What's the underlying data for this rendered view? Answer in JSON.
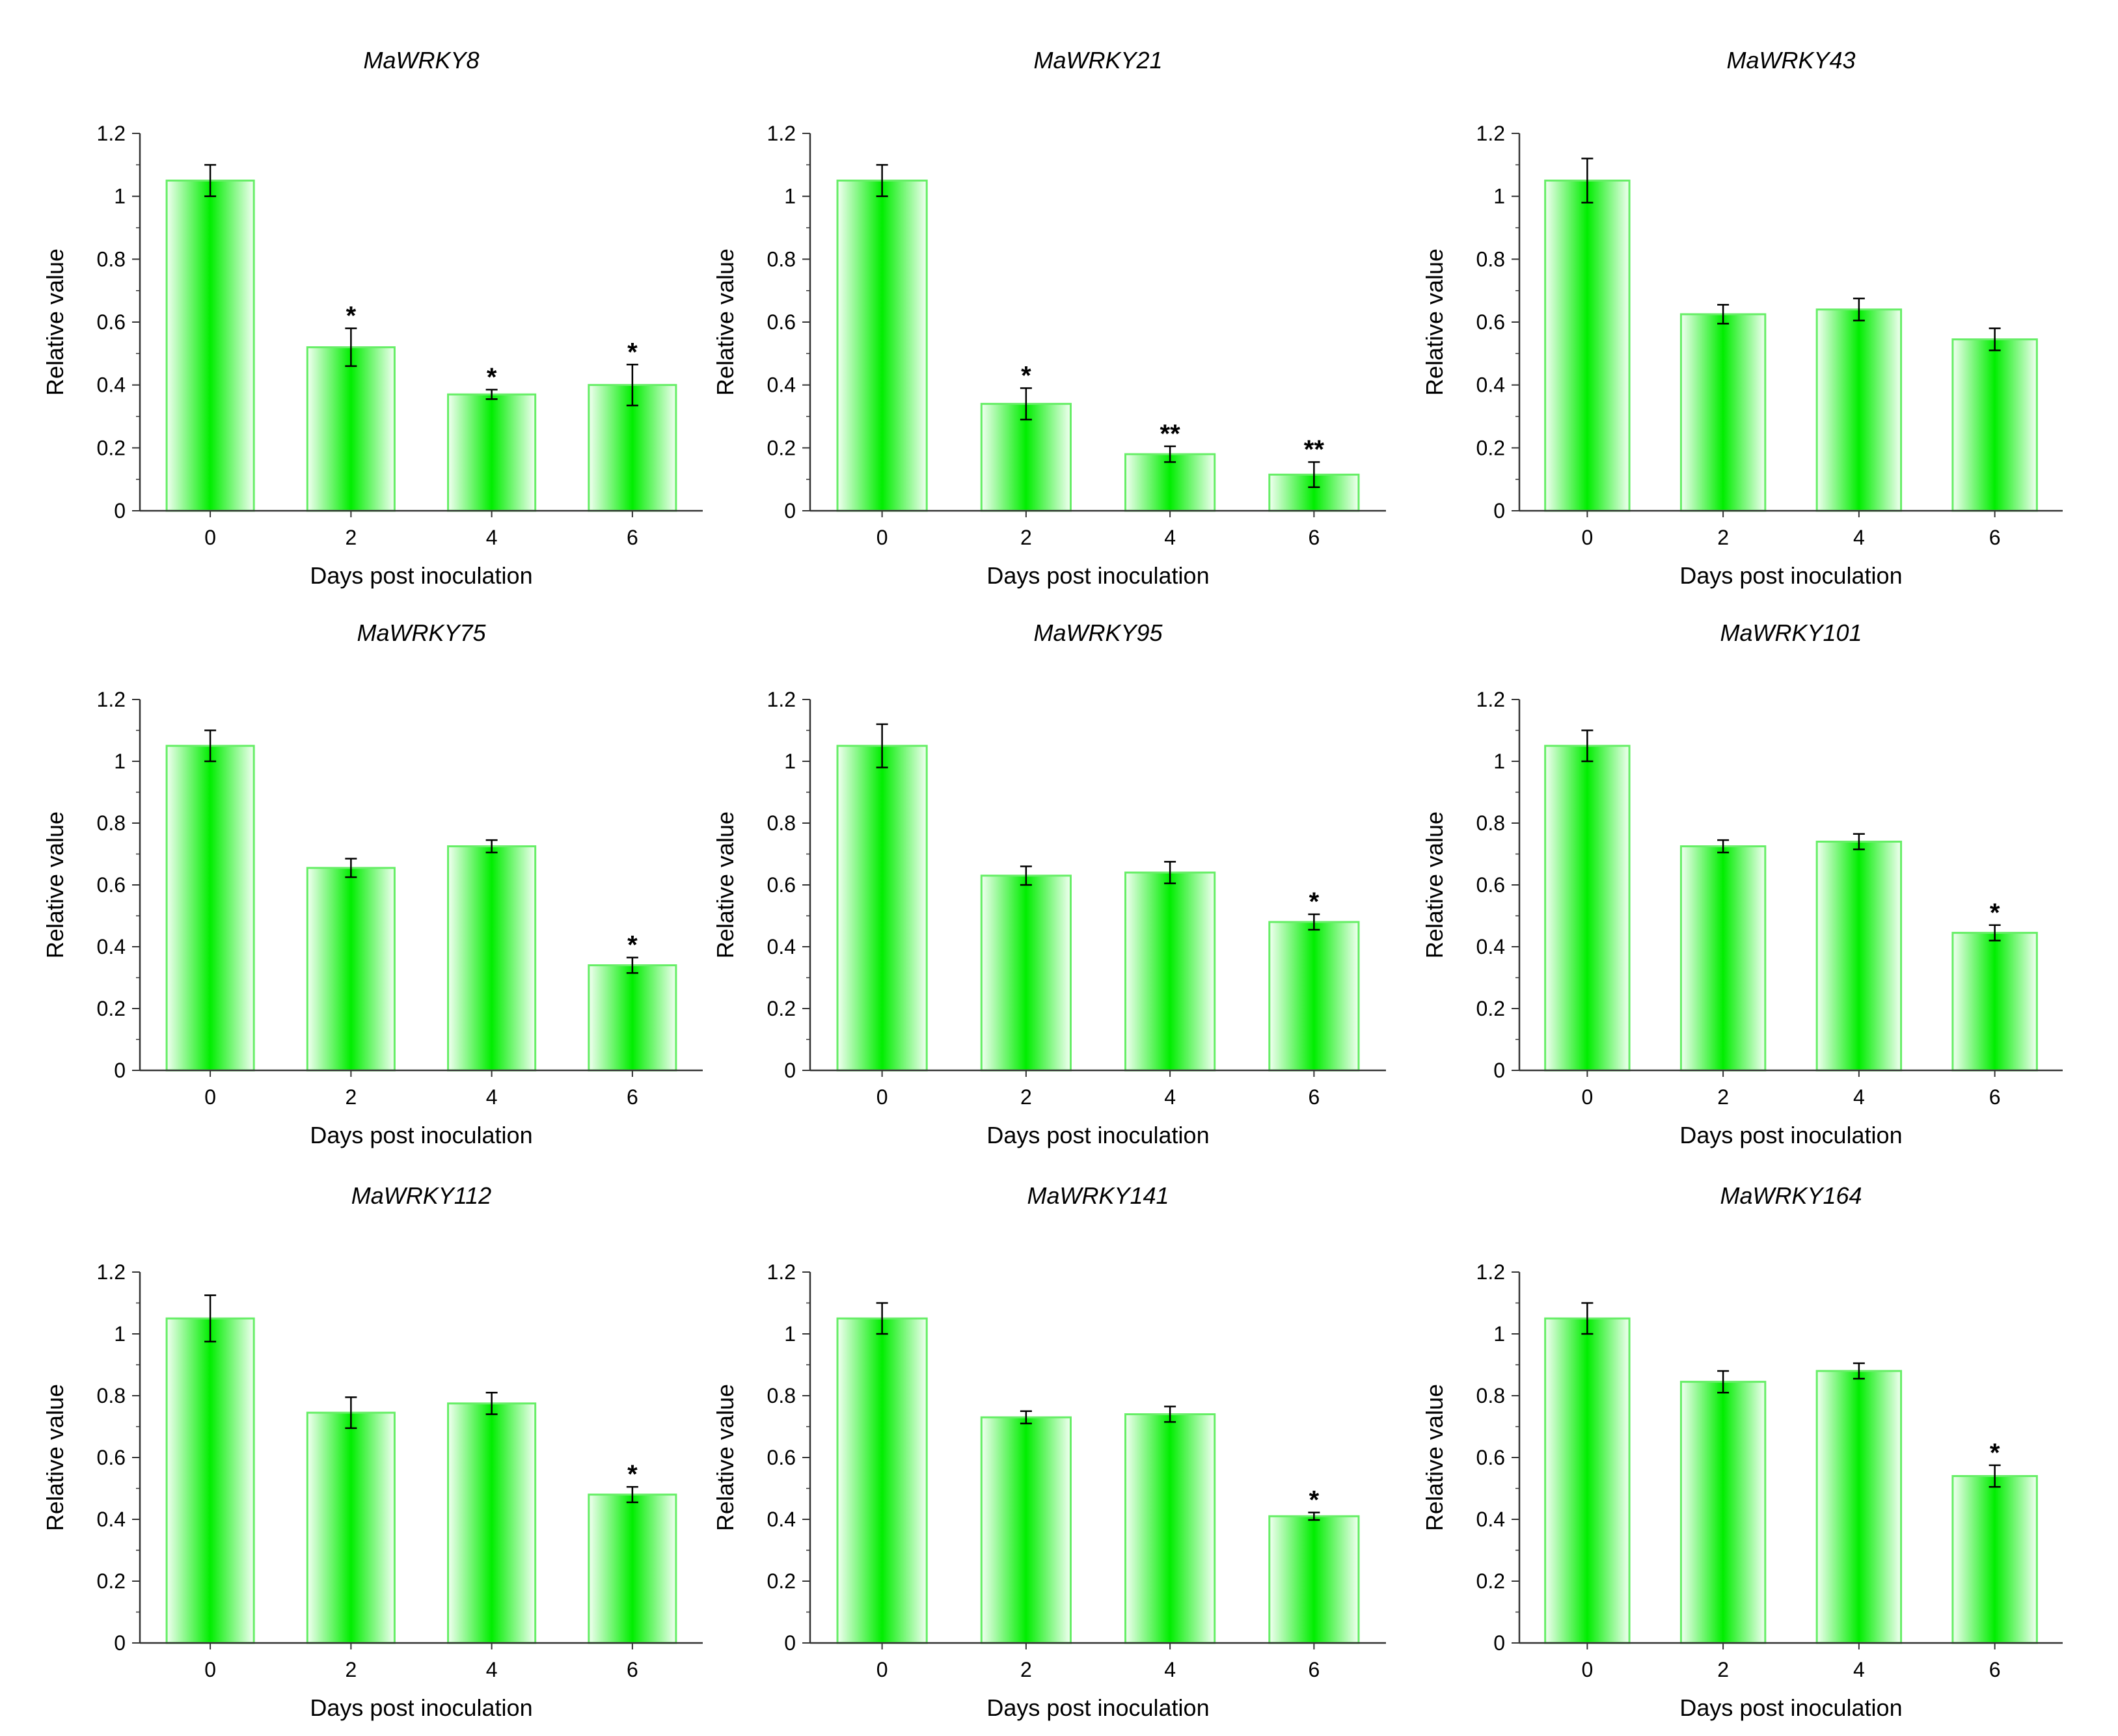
{
  "figure": {
    "background": "#ffffff",
    "bar_fill_center": "#00ee00",
    "bar_fill_edge": "#f2fff2",
    "bar_stroke": "#66ee66"
  },
  "chart_data": [
    {
      "type": "bar",
      "title": "MaWRKY8",
      "xlabel": "Days post inoculation",
      "ylabel": "Relative value",
      "categories": [
        "0",
        "2",
        "4",
        "6"
      ],
      "values": [
        1.05,
        0.52,
        0.37,
        0.4
      ],
      "errors": [
        0.05,
        0.06,
        0.015,
        0.065
      ],
      "significance": [
        "",
        "*",
        "*",
        "*"
      ],
      "ylim": [
        0,
        1.2
      ],
      "yticks": [
        "0",
        "0.2",
        "0.4",
        "0.6",
        "0.8",
        "1",
        "1.2"
      ],
      "grid": false
    },
    {
      "type": "bar",
      "title": "MaWRKY21",
      "xlabel": "Days post inoculation",
      "ylabel": "Relative value",
      "categories": [
        "0",
        "2",
        "4",
        "6"
      ],
      "values": [
        1.05,
        0.34,
        0.18,
        0.115
      ],
      "errors": [
        0.05,
        0.05,
        0.025,
        0.04
      ],
      "significance": [
        "",
        "*",
        "**",
        "**"
      ],
      "ylim": [
        0,
        1.2
      ],
      "yticks": [
        "0",
        "0.2",
        "0.4",
        "0.6",
        "0.8",
        "1",
        "1.2"
      ],
      "grid": false
    },
    {
      "type": "bar",
      "title": "MaWRKY43",
      "xlabel": "Days post inoculation",
      "ylabel": "Relative value",
      "categories": [
        "0",
        "2",
        "4",
        "6"
      ],
      "values": [
        1.05,
        0.625,
        0.64,
        0.545
      ],
      "errors": [
        0.07,
        0.03,
        0.035,
        0.035
      ],
      "significance": [
        "",
        "",
        "",
        ""
      ],
      "ylim": [
        0,
        1.2
      ],
      "yticks": [
        "0",
        "0.2",
        "0.4",
        "0.6",
        "0.8",
        "1",
        "1.2"
      ],
      "grid": false
    },
    {
      "type": "bar",
      "title": "MaWRKY75",
      "xlabel": "Days post inoculation",
      "ylabel": "Relative value",
      "categories": [
        "0",
        "2",
        "4",
        "6"
      ],
      "values": [
        1.05,
        0.655,
        0.725,
        0.34
      ],
      "errors": [
        0.05,
        0.03,
        0.02,
        0.025
      ],
      "significance": [
        "",
        "",
        "",
        "*"
      ],
      "ylim": [
        0,
        1.2
      ],
      "yticks": [
        "0",
        "0.2",
        "0.4",
        "0.6",
        "0.8",
        "1",
        "1.2"
      ],
      "grid": false
    },
    {
      "type": "bar",
      "title": "MaWRKY95",
      "xlabel": "Days post inoculation",
      "ylabel": "Relative value",
      "categories": [
        "0",
        "2",
        "4",
        "6"
      ],
      "values": [
        1.05,
        0.63,
        0.64,
        0.48
      ],
      "errors": [
        0.07,
        0.03,
        0.035,
        0.025
      ],
      "significance": [
        "",
        "",
        "",
        "*"
      ],
      "ylim": [
        0,
        1.2
      ],
      "yticks": [
        "0",
        "0.2",
        "0.4",
        "0.6",
        "0.8",
        "1",
        "1.2"
      ],
      "grid": false
    },
    {
      "type": "bar",
      "title": "MaWRKY101",
      "xlabel": "Days post inoculation",
      "ylabel": "Relative value",
      "categories": [
        "0",
        "2",
        "4",
        "6"
      ],
      "values": [
        1.05,
        0.725,
        0.74,
        0.445
      ],
      "errors": [
        0.05,
        0.02,
        0.025,
        0.025
      ],
      "significance": [
        "",
        "",
        "",
        "*"
      ],
      "ylim": [
        0,
        1.2
      ],
      "yticks": [
        "0",
        "0.2",
        "0.4",
        "0.6",
        "0.8",
        "1",
        "1.2"
      ],
      "grid": false
    },
    {
      "type": "bar",
      "title": "MaWRKY112",
      "xlabel": "Days post inoculation",
      "ylabel": "Relative value",
      "categories": [
        "0",
        "2",
        "4",
        "6"
      ],
      "values": [
        1.05,
        0.745,
        0.775,
        0.48
      ],
      "errors": [
        0.075,
        0.05,
        0.035,
        0.025
      ],
      "significance": [
        "",
        "",
        "",
        "*"
      ],
      "ylim": [
        0,
        1.2
      ],
      "yticks": [
        "0",
        "0.2",
        "0.4",
        "0.6",
        "0.8",
        "1",
        "1.2"
      ],
      "grid": false
    },
    {
      "type": "bar",
      "title": "MaWRKY141",
      "xlabel": "Days post inoculation",
      "ylabel": "Relative value",
      "categories": [
        "0",
        "2",
        "4",
        "6"
      ],
      "values": [
        1.05,
        0.73,
        0.74,
        0.41
      ],
      "errors": [
        0.05,
        0.02,
        0.025,
        0.012
      ],
      "significance": [
        "",
        "",
        "",
        "*"
      ],
      "ylim": [
        0,
        1.2
      ],
      "yticks": [
        "0",
        "0.2",
        "0.4",
        "0.6",
        "0.8",
        "1",
        "1.2"
      ],
      "grid": false
    },
    {
      "type": "bar",
      "title": "MaWRKY164",
      "xlabel": "Days post inoculation",
      "ylabel": "Relative value",
      "categories": [
        "0",
        "2",
        "4",
        "6"
      ],
      "values": [
        1.05,
        0.845,
        0.88,
        0.54
      ],
      "errors": [
        0.05,
        0.035,
        0.025,
        0.035
      ],
      "significance": [
        "",
        "",
        "",
        "*"
      ],
      "ylim": [
        0,
        1.2
      ],
      "yticks": [
        "0",
        "0.2",
        "0.4",
        "0.6",
        "0.8",
        "1",
        "1.2"
      ],
      "grid": false
    }
  ]
}
